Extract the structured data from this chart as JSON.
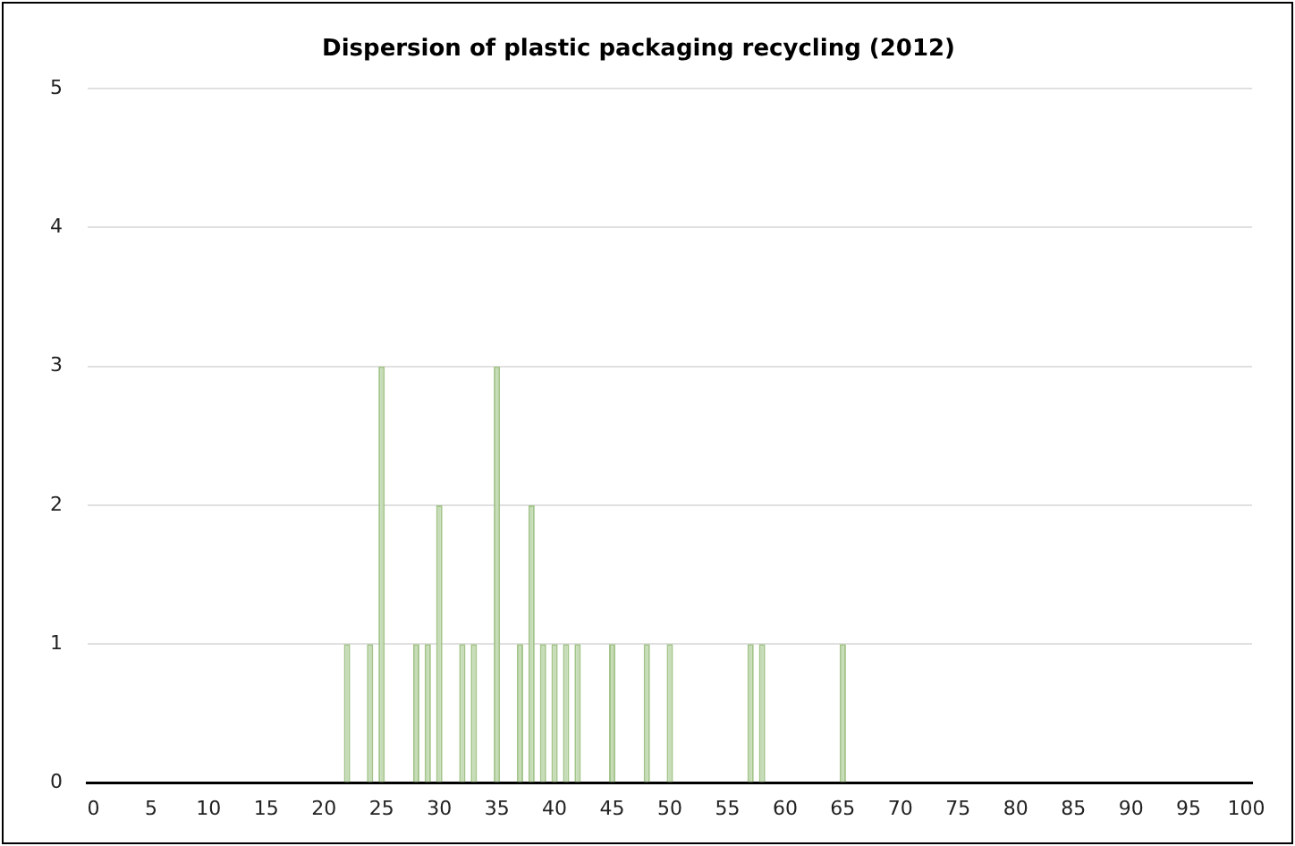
{
  "chart_data": {
    "type": "bar",
    "title": "Dispersion of plastic packaging recycling (2012)",
    "categories": [
      "0",
      null,
      null,
      null,
      null,
      "5",
      null,
      null,
      null,
      null,
      "10",
      null,
      null,
      null,
      null,
      "15",
      null,
      null,
      null,
      null,
      "20",
      null,
      null,
      null,
      null,
      "25",
      null,
      null,
      null,
      null,
      "30",
      null,
      null,
      null,
      null,
      "35",
      null,
      null,
      null,
      null,
      "40",
      null,
      null,
      null,
      null,
      "45",
      null,
      null,
      null,
      null,
      "50",
      null,
      null,
      null,
      null,
      "55",
      null,
      null,
      null,
      null,
      "60",
      null,
      null,
      null,
      null,
      "65",
      null,
      null,
      null,
      null,
      "70",
      null,
      null,
      null,
      null,
      "75",
      null,
      null,
      null,
      null,
      "80",
      null,
      null,
      null,
      null,
      "85",
      null,
      null,
      null,
      null,
      "90",
      null,
      null,
      null,
      null,
      "95",
      null,
      null,
      null,
      null,
      "100"
    ],
    "values": [
      0,
      0,
      0,
      0,
      0,
      0,
      0,
      0,
      0,
      0,
      0,
      0,
      0,
      0,
      0,
      0,
      0,
      0,
      0,
      0,
      0,
      0,
      1,
      0,
      1,
      3,
      0,
      0,
      1,
      1,
      2,
      0,
      1,
      1,
      0,
      3,
      0,
      1,
      2,
      1,
      1,
      1,
      1,
      0,
      0,
      1,
      0,
      0,
      1,
      0,
      1,
      0,
      0,
      0,
      0,
      0,
      0,
      1,
      1,
      0,
      0,
      0,
      0,
      0,
      0,
      1,
      0,
      0,
      0,
      0,
      0,
      0,
      0,
      0,
      0,
      0,
      0,
      0,
      0,
      0,
      0,
      0,
      0,
      0,
      0,
      0,
      0,
      0,
      0,
      0,
      0,
      0,
      0,
      0,
      0,
      0,
      0,
      0,
      0,
      0,
      0
    ],
    "color": "#c6dcb6",
    "ylim": [
      0,
      5
    ],
    "yticks": [
      0,
      1,
      2,
      3,
      4,
      5
    ],
    "grid": "y"
  }
}
